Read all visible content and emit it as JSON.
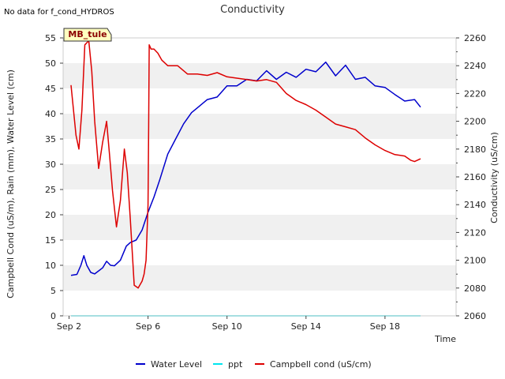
{
  "chart_data": {
    "type": "line",
    "title": "Conductivity",
    "note": "No data for f_cond_HYDROS",
    "site_tag": "MB_tule",
    "xlabel": "Time",
    "ylabel_left": "Campbell Cond (uS/m), Rain (mm), Water Level (cm)",
    "ylabel_right": "Conductivity (uS/cm)",
    "x_unit": "days since Sep 2",
    "xlim": [
      -0.3,
      19.6
    ],
    "x_ticks": [
      0,
      4,
      8,
      12,
      16
    ],
    "x_tick_labels": [
      "Sep 2",
      "Sep 6",
      "Sep 10",
      "Sep 14",
      "Sep 18"
    ],
    "ylim_left": [
      0,
      55
    ],
    "y_ticks_left": [
      0,
      5,
      10,
      15,
      20,
      25,
      30,
      35,
      40,
      45,
      50,
      55
    ],
    "ylim_right": [
      2060,
      2260
    ],
    "y_ticks_right": [
      2060,
      2080,
      2100,
      2120,
      2140,
      2160,
      2180,
      2200,
      2220,
      2240,
      2260
    ],
    "grid": "horizontal bands",
    "legend_position": "bottom",
    "series": [
      {
        "name": "Water Level",
        "axis": "left",
        "color": "#0000cc",
        "x": [
          0.1,
          0.4,
          0.6,
          0.75,
          0.9,
          1.1,
          1.3,
          1.7,
          1.9,
          2.1,
          2.3,
          2.6,
          2.9,
          3.1,
          3.4,
          3.7,
          4.0,
          4.3,
          4.6,
          5.0,
          5.4,
          5.8,
          6.2,
          6.6,
          7.0,
          7.5,
          8.0,
          8.5,
          9.0,
          9.5,
          10.0,
          10.5,
          11.0,
          11.5,
          12.0,
          12.5,
          13.0,
          13.5,
          14.0,
          14.5,
          15.0,
          15.5,
          16.0,
          16.5,
          17.0,
          17.5,
          17.8
        ],
        "values": [
          8.0,
          8.2,
          10.0,
          11.9,
          10.0,
          8.6,
          8.3,
          9.5,
          10.8,
          10.0,
          9.9,
          11.0,
          13.8,
          14.5,
          15.0,
          17.0,
          20.5,
          23.5,
          27.0,
          32.0,
          35.0,
          38.0,
          40.2,
          41.5,
          42.8,
          43.3,
          45.5,
          45.5,
          46.8,
          46.5,
          48.5,
          46.8,
          48.2,
          47.2,
          48.8,
          48.3,
          50.2,
          47.5,
          49.6,
          46.8,
          47.2,
          45.5,
          45.2,
          43.8,
          42.5,
          42.8,
          41.3
        ]
      },
      {
        "name": "ppt",
        "axis": "left",
        "color": "#00e5ee",
        "x": [
          0.1,
          17.8
        ],
        "values": [
          0.0,
          0.0
        ]
      },
      {
        "name": "Campbell cond (uS/cm)",
        "axis": "right",
        "color": "#dd0000",
        "x": [
          0.1,
          0.35,
          0.5,
          0.65,
          0.8,
          1.0,
          1.15,
          1.3,
          1.5,
          1.7,
          1.9,
          2.05,
          2.2,
          2.4,
          2.6,
          2.8,
          2.95,
          3.1,
          3.3,
          3.5,
          3.7,
          3.8,
          3.9,
          4.0,
          4.03,
          4.06,
          4.15,
          4.3,
          4.5,
          4.7,
          5.0,
          5.5,
          6.0,
          6.5,
          7.0,
          7.5,
          8.0,
          8.5,
          9.0,
          9.5,
          10.0,
          10.5,
          11.0,
          11.5,
          12.0,
          12.5,
          13.0,
          13.5,
          14.0,
          14.5,
          15.0,
          15.5,
          16.0,
          16.5,
          17.0,
          17.3,
          17.5,
          17.8
        ],
        "values": [
          2226,
          2190,
          2180,
          2208,
          2255,
          2258,
          2236,
          2200,
          2166,
          2185,
          2200,
          2176,
          2150,
          2124,
          2143,
          2180,
          2163,
          2130,
          2082,
          2080,
          2085,
          2090,
          2100,
          2140,
          2196,
          2255,
          2252,
          2252,
          2249,
          2244,
          2240,
          2240,
          2234,
          2234,
          2233,
          2235,
          2232,
          2231,
          2230,
          2229,
          2230,
          2228,
          2220,
          2215,
          2212,
          2208,
          2203,
          2198,
          2196,
          2194,
          2188,
          2183,
          2179,
          2176,
          2175,
          2172,
          2171,
          2173
        ]
      }
    ]
  }
}
